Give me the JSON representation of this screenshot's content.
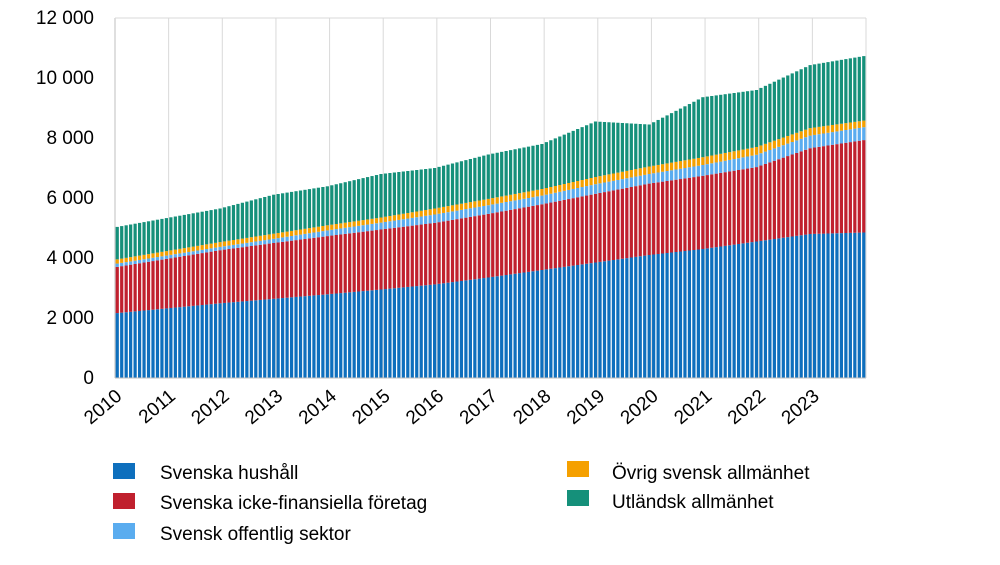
{
  "chart_data": {
    "type": "bar",
    "stacked": true,
    "title": "",
    "xlabel": "",
    "ylabel": "",
    "ylim": [
      0,
      12000
    ],
    "y_ticks": [
      0,
      2000,
      4000,
      6000,
      8000,
      10000,
      12000
    ],
    "y_tick_labels": [
      "0",
      "2 000",
      "4 000",
      "6 000",
      "8 000",
      "10 000",
      "12 000"
    ],
    "x_tick_labels": [
      "2010",
      "2011",
      "2012",
      "2013",
      "2014",
      "2015",
      "2016",
      "2017",
      "2018",
      "2019",
      "2020",
      "2021",
      "2022",
      "2023"
    ],
    "grid": "vertical at year boundaries",
    "legend_position": "bottom",
    "x_period": "monthly, 2010-01 to 2023-12",
    "colors": {
      "Svenska hushåll": "#0e6fbd",
      "Svenska icke-finansiella företag": "#c0202e",
      "Svensk offentlig sektor": "#5aacef",
      "Övrig svensk allmänhet": "#f5a000",
      "Utländsk allmänhet": "#15907a"
    },
    "year_end_values": {
      "x": [
        "2010",
        "2011",
        "2012",
        "2013",
        "2014",
        "2015",
        "2016",
        "2017",
        "2018",
        "2019",
        "2020",
        "2021",
        "2022",
        "2023"
      ],
      "series": [
        {
          "name": "Svenska hushåll",
          "values": [
            2320,
            2490,
            2640,
            2790,
            2950,
            3120,
            3350,
            3600,
            3850,
            4100,
            4300,
            4550,
            4800,
            4850
          ]
        },
        {
          "name": "Svenska icke-finansiella företag",
          "values": [
            1650,
            1770,
            1860,
            1940,
            2000,
            2050,
            2120,
            2190,
            2290,
            2380,
            2440,
            2480,
            2860,
            3080
          ]
        },
        {
          "name": "Svensk offentlig sektor",
          "values": [
            110,
            110,
            140,
            190,
            230,
            280,
            290,
            290,
            320,
            320,
            360,
            410,
            420,
            430
          ]
        },
        {
          "name": "Övrig svensk allmänhet",
          "values": [
            150,
            160,
            170,
            170,
            170,
            200,
            210,
            220,
            240,
            250,
            260,
            260,
            250,
            220
          ]
        },
        {
          "name": "Utländsk allmänhet",
          "values": [
            1100,
            1120,
            1300,
            1300,
            1450,
            1350,
            1480,
            1500,
            1850,
            1400,
            2000,
            1900,
            2100,
            2150
          ]
        }
      ]
    }
  },
  "legend": {
    "items": [
      {
        "label": "Svenska hushåll",
        "color": "#0e6fbd"
      },
      {
        "label": "Svenska icke-finansiella företag",
        "color": "#c0202e"
      },
      {
        "label": "Svensk offentlig sektor",
        "color": "#5aacef"
      },
      {
        "label": "Övrig svensk allmänhet",
        "color": "#f5a000"
      },
      {
        "label": "Utländsk allmänhet",
        "color": "#15907a"
      }
    ]
  }
}
